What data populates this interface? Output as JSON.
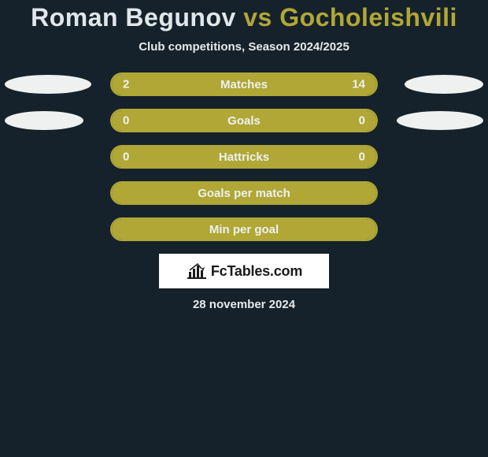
{
  "title": {
    "player1": "Roman Begunov",
    "vs": "vs",
    "player2": "Gocholeishvili",
    "accent_color": "#b0a736"
  },
  "subtitle": "Club competitions, Season 2024/2025",
  "colors": {
    "background": "#16222b",
    "bar_border": "#b0a736",
    "bar_fill": "#b0a736",
    "ellipse": "#eef1ef",
    "text_light": "#eef1ef"
  },
  "ellipse_max_width": 110,
  "rows": [
    {
      "label": "Matches",
      "left_value": "2",
      "right_value": "14",
      "left_num": 2,
      "right_num": 14,
      "fill_mode": "split",
      "show_ellipses": true,
      "ellipse_left_w": 110,
      "ellipse_right_w": 100
    },
    {
      "label": "Goals",
      "left_value": "0",
      "right_value": "0",
      "left_num": 0,
      "right_num": 0,
      "fill_mode": "full",
      "show_ellipses": true,
      "ellipse_left_w": 100,
      "ellipse_right_w": 110
    },
    {
      "label": "Hattricks",
      "left_value": "0",
      "right_value": "0",
      "left_num": 0,
      "right_num": 0,
      "fill_mode": "full",
      "show_ellipses": false
    },
    {
      "label": "Goals per match",
      "left_value": "",
      "right_value": "",
      "left_num": 0,
      "right_num": 0,
      "fill_mode": "full",
      "show_ellipses": false
    },
    {
      "label": "Min per goal",
      "left_value": "",
      "right_value": "",
      "left_num": 0,
      "right_num": 0,
      "fill_mode": "full",
      "show_ellipses": false
    }
  ],
  "logo": {
    "text": "FcTables.com",
    "icon": "chart-icon"
  },
  "date": "28 november 2024"
}
